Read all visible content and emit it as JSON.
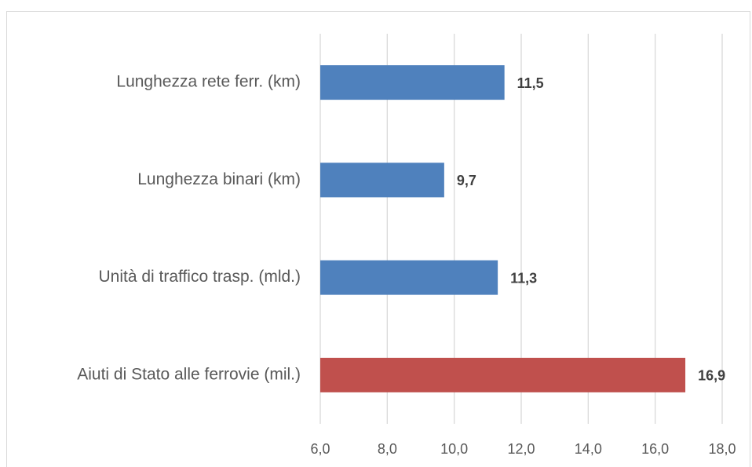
{
  "chart_data": {
    "type": "bar",
    "orientation": "horizontal",
    "categories": [
      "Lunghezza rete ferr. (km)",
      "Lunghezza binari (km)",
      "Unità di traffico trasp. (mld.)",
      "Aiuti di Stato alle ferrovie (mil.)"
    ],
    "values": [
      11.5,
      9.7,
      11.3,
      16.9
    ],
    "value_labels": [
      "11,5",
      "9,7",
      "11,3",
      "16,9"
    ],
    "colors": [
      "#4f81bd",
      "#4f81bd",
      "#4f81bd",
      "#c0504d"
    ],
    "xlim": [
      6,
      18
    ],
    "xticks": [
      {
        "value": 6,
        "label": "6,0"
      },
      {
        "value": 8,
        "label": "8,0"
      },
      {
        "value": 10,
        "label": "10,0"
      },
      {
        "value": 12,
        "label": "12,0"
      },
      {
        "value": 14,
        "label": "14,0"
      },
      {
        "value": 16,
        "label": "16,0"
      },
      {
        "value": 18,
        "label": "18,0"
      }
    ],
    "grid": true
  }
}
